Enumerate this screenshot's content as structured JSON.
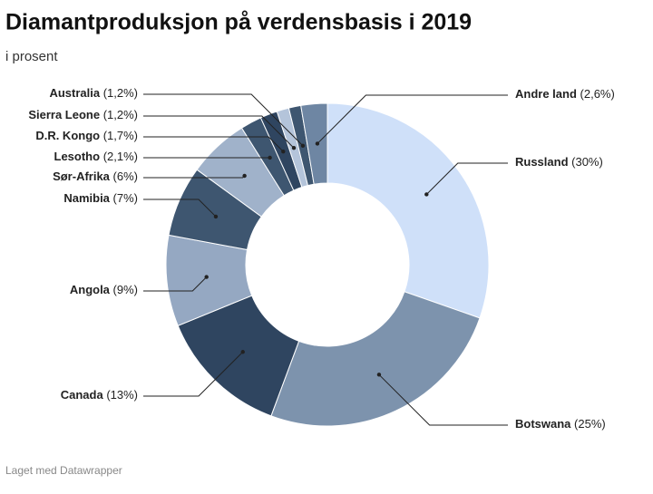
{
  "chart_data": {
    "type": "donut",
    "title": "Diamantproduksjon på verdensbasis i 2019",
    "subtitle": "i prosent",
    "footer": "Laget med Datawrapper",
    "categories": [
      "Russland",
      "Botswana",
      "Canada",
      "Angola",
      "Namibia",
      "Sør-Afrika",
      "Lesotho",
      "D.R. Kongo",
      "Sierra Leone",
      "Australia",
      "Andre land"
    ],
    "values": [
      30,
      25,
      13,
      9,
      7,
      6,
      2.1,
      1.7,
      1.2,
      1.2,
      2.6
    ],
    "value_labels": [
      "(30%)",
      "(25%)",
      "(13%)",
      "(9%)",
      "(7%)",
      "(6%)",
      "(2,1%)",
      "(1,7%)",
      "(1,2%)",
      "(1,2%)",
      "(2,6%)"
    ],
    "colors": [
      "#cfe0f9",
      "#7d93ad",
      "#2f4560",
      "#95a8c2",
      "#3e5670",
      "#a0b2ca",
      "#3e5670",
      "#2f4560",
      "#b4c4da",
      "#3e5670",
      "#6e86a3"
    ]
  }
}
